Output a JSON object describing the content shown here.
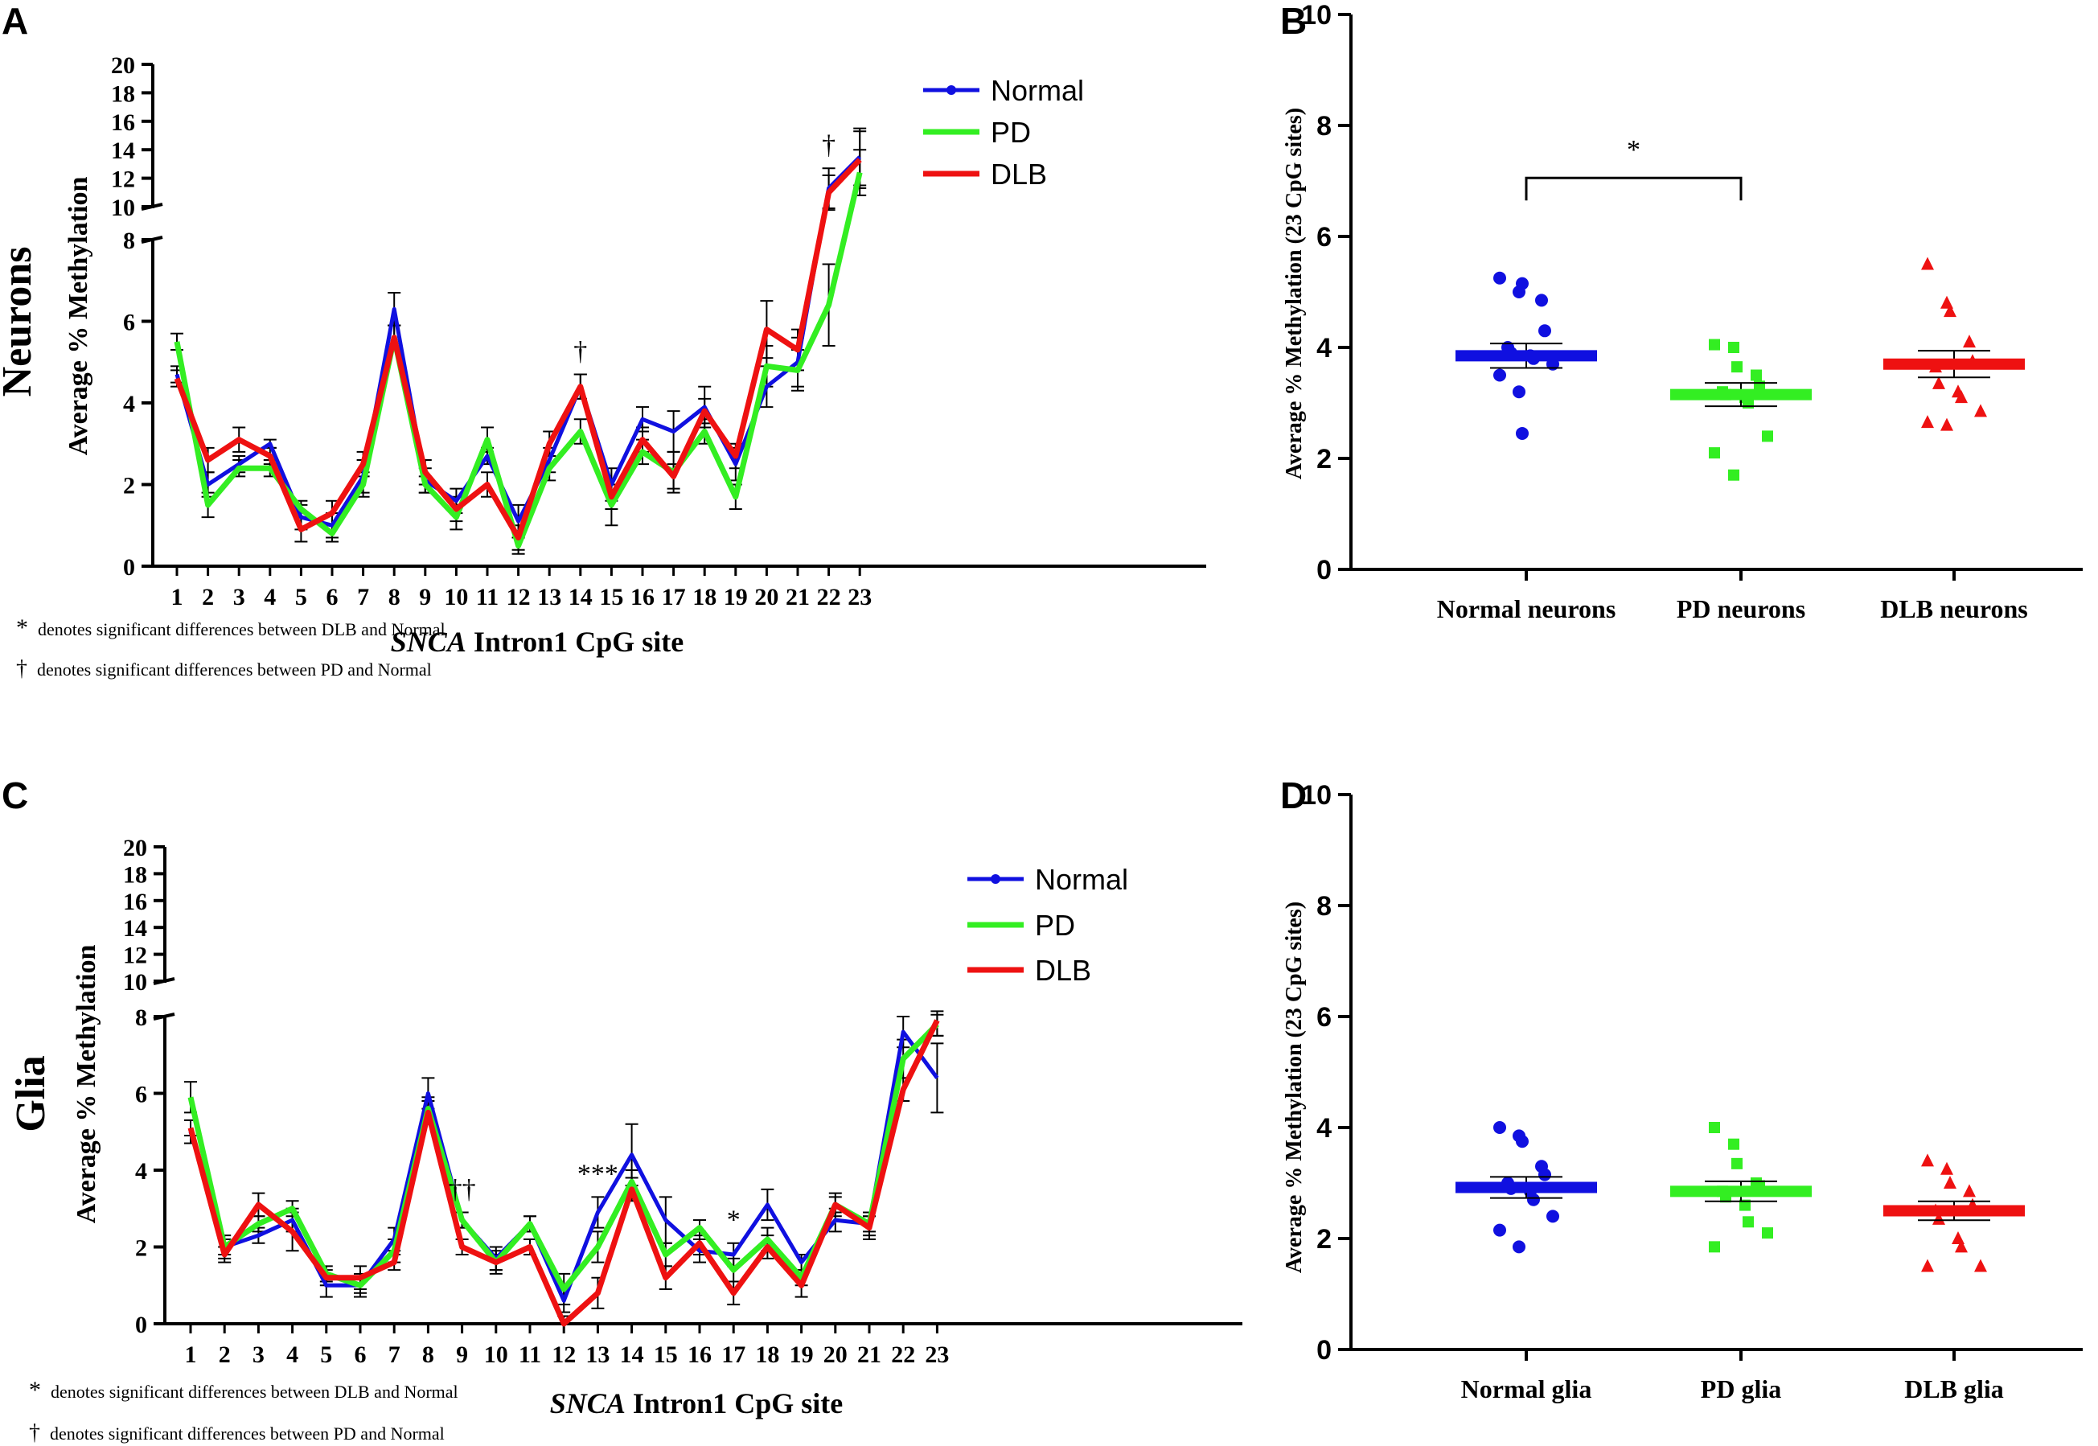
{
  "colors": {
    "Normal": "#1010e0",
    "PD": "#33ee22",
    "DLB": "#ee1111",
    "axis": "#000000"
  },
  "footnotes": [
    {
      "symbol": "*",
      "text": "denotes significant differences between DLB and Normal"
    },
    {
      "symbol": "†",
      "text": "denotes significant differences between PD and Normal"
    }
  ],
  "chart_data": [
    {
      "id": "A",
      "panel_label": "A",
      "type": "line",
      "side_label": "Neurons",
      "ylabel": "Average % Methylation",
      "xlabel_italic": "SNCA",
      "xlabel_rest": " Intron1 CpG site",
      "ylim_lower": [
        0,
        8
      ],
      "ylim_upper": [
        10,
        20
      ],
      "yticks_lower": [
        0,
        2,
        4,
        6,
        8
      ],
      "yticks_upper": [
        10,
        12,
        14,
        16,
        18,
        20
      ],
      "x": [
        1,
        2,
        3,
        4,
        5,
        6,
        7,
        8,
        9,
        10,
        11,
        12,
        13,
        14,
        15,
        16,
        17,
        18,
        19,
        20,
        21,
        22,
        23
      ],
      "series": [
        {
          "name": "Normal",
          "values": [
            4.7,
            2.0,
            2.5,
            3.0,
            1.2,
            1.0,
            2.2,
            6.3,
            2.1,
            1.6,
            2.7,
            1.1,
            2.6,
            4.4,
            2.0,
            3.6,
            3.3,
            3.9,
            2.5,
            4.4,
            5.0,
            11.3,
            13.5
          ],
          "errors": [
            0.2,
            0.3,
            0.2,
            0.1,
            0.3,
            0.3,
            0.4,
            0.4,
            0.3,
            0.3,
            0.2,
            0.4,
            0.3,
            0.3,
            0.4,
            0.3,
            0.5,
            0.5,
            0.4,
            0.5,
            0.6,
            1.4,
            2.0
          ]
        },
        {
          "name": "PD",
          "values": [
            5.5,
            1.5,
            2.4,
            2.4,
            1.4,
            0.8,
            2.0,
            5.6,
            2.0,
            1.2,
            3.1,
            0.5,
            2.4,
            3.3,
            1.5,
            2.8,
            2.3,
            3.3,
            1.7,
            4.9,
            4.8,
            6.4,
            12.4
          ],
          "errors": [
            0.2,
            0.3,
            0.2,
            0.2,
            0.2,
            0.2,
            0.3,
            0.3,
            0.2,
            0.3,
            0.3,
            0.2,
            0.3,
            0.3,
            0.5,
            0.3,
            0.5,
            0.3,
            0.3,
            0.5,
            0.5,
            1.0,
            1.6
          ]
        },
        {
          "name": "DLB",
          "values": [
            4.6,
            2.6,
            3.1,
            2.7,
            0.9,
            1.3,
            2.5,
            5.6,
            2.3,
            1.4,
            2.0,
            0.7,
            3.0,
            4.4,
            1.7,
            3.1,
            2.2,
            3.8,
            2.7,
            5.8,
            5.3,
            11.0,
            13.3
          ],
          "errors": [
            0.2,
            0.3,
            0.3,
            0.2,
            0.3,
            0.3,
            0.3,
            0.3,
            0.3,
            0.3,
            0.3,
            0.3,
            0.3,
            0.3,
            0.3,
            0.3,
            0.3,
            0.3,
            0.3,
            0.7,
            0.5,
            1.2,
            2.0
          ]
        }
      ],
      "legend": [
        "Normal",
        "PD",
        "DLB"
      ],
      "legend_position": "top-right",
      "annotations": [
        {
          "x": 14,
          "text": "†"
        },
        {
          "x": 22,
          "text": "†"
        }
      ]
    },
    {
      "id": "B",
      "panel_label": "B",
      "type": "scatter",
      "ylabel": "Average % Methylation (23 CpG sites)",
      "ylim": [
        0,
        10
      ],
      "yticks": [
        0,
        2,
        4,
        6,
        8,
        10
      ],
      "categories": [
        "Normal neurons",
        "PD neurons",
        "DLB neurons"
      ],
      "groups": [
        {
          "name": "Normal",
          "marker": "circle",
          "mean": 3.85,
          "sem": 0.22,
          "points": [
            5.25,
            5.0,
            5.15,
            4.85,
            4.3,
            4.0,
            3.9,
            3.85,
            3.8,
            3.7,
            3.5,
            3.2,
            2.45
          ]
        },
        {
          "name": "PD",
          "marker": "square",
          "mean": 3.15,
          "sem": 0.21,
          "points": [
            4.05,
            4.0,
            3.65,
            3.5,
            3.3,
            3.2,
            3.15,
            3.1,
            3.0,
            2.4,
            2.1,
            1.7
          ]
        },
        {
          "name": "DLB",
          "marker": "triangle",
          "mean": 3.7,
          "sem": 0.24,
          "points": [
            5.5,
            4.8,
            4.65,
            4.1,
            3.75,
            3.65,
            3.35,
            3.2,
            3.1,
            2.85,
            2.65,
            2.6
          ]
        }
      ],
      "significance": [
        {
          "from": 0,
          "to": 1,
          "text": "*",
          "y": 7.2
        }
      ]
    },
    {
      "id": "C",
      "panel_label": "C",
      "type": "line",
      "side_label": "Glia",
      "ylabel": "Average % Methylation",
      "xlabel_italic": "SNCA",
      "xlabel_rest": " Intron1 CpG site",
      "ylim_lower": [
        0,
        8
      ],
      "ylim_upper": [
        10,
        20
      ],
      "yticks_lower": [
        0,
        2,
        4,
        6,
        8
      ],
      "yticks_upper": [
        10,
        12,
        14,
        16,
        18,
        20
      ],
      "x": [
        1,
        2,
        3,
        4,
        5,
        6,
        7,
        8,
        9,
        10,
        11,
        12,
        13,
        14,
        15,
        16,
        17,
        18,
        19,
        20,
        21,
        22,
        23
      ],
      "series": [
        {
          "name": "Normal",
          "values": [
            5.0,
            2.0,
            2.3,
            2.7,
            1.0,
            1.0,
            2.2,
            6.0,
            2.7,
            1.7,
            2.6,
            0.6,
            2.9,
            4.4,
            2.7,
            1.9,
            1.8,
            3.1,
            1.6,
            2.7,
            2.6,
            7.6,
            6.4
          ],
          "errors": [
            0.3,
            0.3,
            0.2,
            0.3,
            0.3,
            0.3,
            0.3,
            0.4,
            0.2,
            0.3,
            0.2,
            0.3,
            0.4,
            0.8,
            0.6,
            0.3,
            0.3,
            0.4,
            0.2,
            0.3,
            0.3,
            0.4,
            0.9
          ]
        },
        {
          "name": "PD",
          "values": [
            5.9,
            2.0,
            2.6,
            3.0,
            1.3,
            1.0,
            1.9,
            5.6,
            2.7,
            1.6,
            2.6,
            0.9,
            2.0,
            3.7,
            1.8,
            2.5,
            1.4,
            2.2,
            1.2,
            3.1,
            2.6,
            6.9,
            7.8
          ],
          "errors": [
            0.4,
            0.2,
            0.2,
            0.2,
            0.2,
            0.2,
            0.3,
            0.3,
            0.2,
            0.3,
            0.2,
            0.4,
            0.4,
            0.3,
            0.3,
            0.2,
            0.3,
            0.3,
            0.2,
            0.2,
            0.2,
            0.5,
            0.3
          ]
        },
        {
          "name": "DLB",
          "values": [
            5.1,
            1.8,
            3.1,
            2.4,
            1.2,
            1.2,
            1.6,
            5.5,
            2.0,
            1.6,
            2.0,
            0.0,
            0.8,
            3.5,
            1.2,
            2.1,
            0.8,
            2.0,
            1.0,
            3.1,
            2.5,
            6.1,
            7.9
          ],
          "errors": [
            0.2,
            0.2,
            0.3,
            0.5,
            0.2,
            0.3,
            0.2,
            0.3,
            0.2,
            0.2,
            0.2,
            0.2,
            0.4,
            0.3,
            0.3,
            0.3,
            0.3,
            0.3,
            0.3,
            0.3,
            0.3,
            0.3,
            0.4
          ]
        }
      ],
      "legend": [
        "Normal",
        "PD",
        "DLB"
      ],
      "legend_position": "top-right",
      "annotations": [
        {
          "x": 9,
          "text": "††"
        },
        {
          "x": 13,
          "text": "***"
        },
        {
          "x": 17,
          "text": "*"
        }
      ]
    },
    {
      "id": "D",
      "panel_label": "D",
      "type": "scatter",
      "ylabel": "Average % Methylation (23 CpG sites)",
      "ylim": [
        0,
        10
      ],
      "yticks": [
        0,
        2,
        4,
        6,
        8,
        10
      ],
      "categories": [
        "Normal glia",
        "PD glia",
        "DLB glia"
      ],
      "groups": [
        {
          "name": "Normal",
          "marker": "circle",
          "mean": 2.92,
          "sem": 0.19,
          "points": [
            4.0,
            3.85,
            3.75,
            3.3,
            3.15,
            3.0,
            2.9,
            2.85,
            2.7,
            2.4,
            2.15,
            1.85
          ]
        },
        {
          "name": "PD",
          "marker": "square",
          "mean": 2.85,
          "sem": 0.18,
          "points": [
            4.0,
            3.7,
            3.35,
            3.0,
            2.95,
            2.85,
            2.75,
            2.6,
            2.3,
            2.1,
            1.85
          ]
        },
        {
          "name": "DLB",
          "marker": "triangle",
          "mean": 2.5,
          "sem": 0.17,
          "points": [
            3.4,
            3.25,
            3.0,
            2.85,
            2.6,
            2.5,
            2.35,
            2.0,
            1.85,
            1.5,
            1.5
          ]
        }
      ],
      "significance": []
    }
  ]
}
